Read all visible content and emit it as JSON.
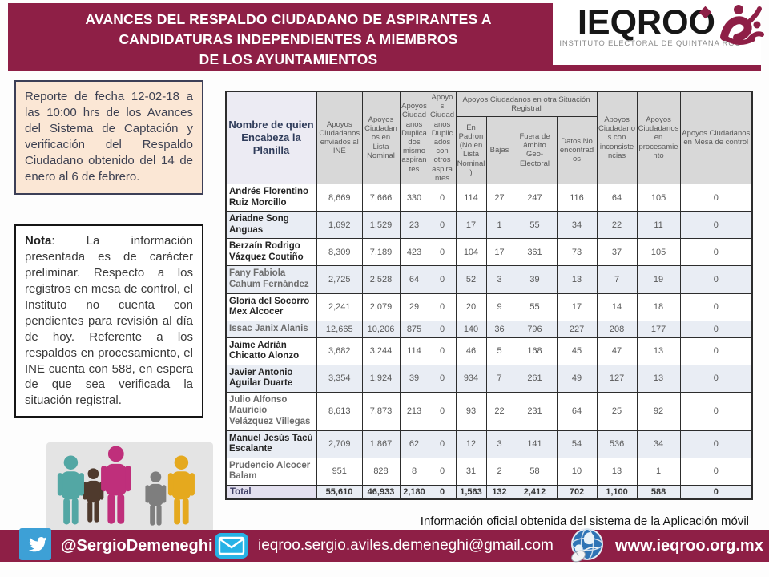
{
  "title": {
    "lines": [
      "AVANCES DEL RESPALDO CIUDADANO DE ASPIRANTES  A",
      "CANDIDATURAS INDEPENDIENTES A MIEMBROS",
      "DE LOS AYUNTAMIENTOS"
    ]
  },
  "logo": {
    "name": "IEQROO",
    "subtitle": "INSTITUTO ELECTORAL DE QUINTANA ROO"
  },
  "report_box": {
    "text": "Reporte de fecha 12-02-18 a las 10:00 hrs de los Avances del Sistema de Captación y verificación del Respaldo Ciudadano obtenido del 14 de enero al 6 de febrero."
  },
  "nota_box": {
    "label": "Nota",
    "text": ": La información presentada es de carácter preliminar. Respecto a los registros en mesa de control, el Instituto no cuenta con pendientes para revisión al día de hoy. Referente a los respaldos en procesamiento, el INE cuenta con 588, en espera de que sea verificada la situación registral."
  },
  "table": {
    "name_header": "Nombre de quien  Encabeza la Planilla",
    "left_headers": [
      "Apoyos Ciudadanos enviados al INE",
      "Apoyos Ciudadanos en Lista Nominal",
      "Apoyos Ciudadanos Duplicados mismo aspirantes",
      "Apoyos Ciudadanos Duplicados con otros aspirantes"
    ],
    "group": {
      "title": "Apoyos Ciudadanos en otra Situación Registral",
      "children": [
        "En Padron (No en Lista Nominal)",
        "Bajas",
        "Fuera de ámbito Geo-Electoral",
        "Datos No encontrados"
      ]
    },
    "right_headers": [
      "Apoyos Ciudadanos con inconsistencias",
      "Apoyos Ciudadanos en procesamiento",
      "Apoyos Ciudadanos en Mesa de control"
    ],
    "rows": [
      {
        "name": "Andrés Florentino Ruiz Morcillo",
        "muted": false,
        "values": [
          "8,669",
          "7,666",
          "330",
          "0",
          "114",
          "27",
          "247",
          "116",
          "64",
          "105",
          "0"
        ]
      },
      {
        "name": "Ariadne Song Anguas",
        "muted": false,
        "values": [
          "1,692",
          "1,529",
          "23",
          "0",
          "17",
          "1",
          "55",
          "34",
          "22",
          "11",
          "0"
        ]
      },
      {
        "name": "Berzaín Rodrigo Vázquez Coutiño",
        "muted": false,
        "values": [
          "8,309",
          "7,189",
          "423",
          "0",
          "104",
          "17",
          "361",
          "73",
          "37",
          "105",
          "0"
        ]
      },
      {
        "name": "Fany Fabiola Cahum Fernández",
        "muted": true,
        "values": [
          "2,725",
          "2,528",
          "64",
          "0",
          "52",
          "3",
          "39",
          "13",
          "7",
          "19",
          "0"
        ]
      },
      {
        "name": "Gloria del Socorro Mex Alcocer",
        "muted": false,
        "values": [
          "2,241",
          "2,079",
          "29",
          "0",
          "20",
          "9",
          "55",
          "17",
          "14",
          "18",
          "0"
        ]
      },
      {
        "name": "Issac Janix Alanis",
        "muted": true,
        "values": [
          "12,665",
          "10,206",
          "875",
          "0",
          "140",
          "36",
          "796",
          "227",
          "208",
          "177",
          "0"
        ]
      },
      {
        "name": "Jaime Adrián Chicatto Alonzo",
        "muted": false,
        "values": [
          "3,682",
          "3,244",
          "114",
          "0",
          "46",
          "5",
          "168",
          "45",
          "47",
          "13",
          "0"
        ]
      },
      {
        "name": "Javier Antonio Aguilar Duarte",
        "muted": false,
        "values": [
          "3,354",
          "1,924",
          "39",
          "0",
          "934",
          "7",
          "261",
          "49",
          "127",
          "13",
          "0"
        ]
      },
      {
        "name": "Julio Alfonso Mauricio Velázquez Villegas",
        "muted": true,
        "values": [
          "8,613",
          "7,873",
          "213",
          "0",
          "93",
          "22",
          "231",
          "64",
          "25",
          "92",
          "0"
        ]
      },
      {
        "name": "Manuel Jesús Tacú Escalante",
        "muted": false,
        "values": [
          "2,709",
          "1,867",
          "62",
          "0",
          "12",
          "3",
          "141",
          "54",
          "536",
          "34",
          "0"
        ]
      },
      {
        "name": "Prudencio Alcocer Balam",
        "muted": true,
        "values": [
          "951",
          "828",
          "8",
          "0",
          "31",
          "2",
          "58",
          "10",
          "13",
          "1",
          "0"
        ]
      }
    ],
    "total": {
      "label": "Total",
      "values": [
        "55,610",
        "46,933",
        "2,180",
        "0",
        "1,563",
        "132",
        "2,412",
        "702",
        "1,100",
        "588",
        "0"
      ]
    }
  },
  "footnote": "Información oficial obtenida del sistema de la Aplicación móvil",
  "footer": {
    "twitter_handle": "@SergioDemeneghi",
    "email": "ieqroo.sergio.aviles.demeneghi@gmail.com",
    "website": "www.ieqroo.org.mx"
  },
  "colors": {
    "maroon": "#8e1f46",
    "twitter_blue": "#3da0d6",
    "mail_blue": "#27b2e6",
    "header_gray": "#d8d8d8",
    "row_alt": "#e9edf4",
    "lavender": "#ecebf3",
    "peach": "#fbe7d5"
  }
}
